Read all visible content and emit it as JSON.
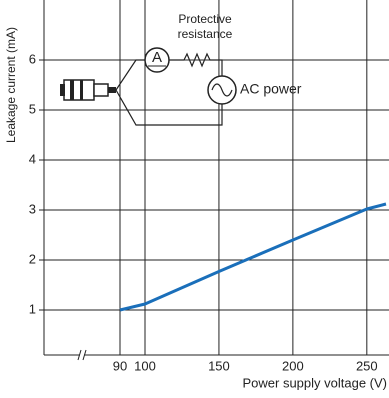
{
  "chart_data": {
    "type": "line",
    "x_label": "Power supply voltage (V)",
    "y_label": "Leakage current (mA)",
    "x": [
      90,
      100,
      150,
      200,
      250,
      263
    ],
    "series": [
      {
        "color": "#1a6fba",
        "values": [
          1.0,
          1.12,
          1.77,
          2.4,
          3.02,
          3.12
        ]
      }
    ],
    "xlim": [
      60,
      265
    ],
    "xticks": [
      90,
      100,
      150,
      200,
      250
    ],
    "ylim": [
      0.1,
      7.2
    ],
    "yticks": [
      1,
      2,
      3,
      4,
      5,
      6
    ],
    "grid": true,
    "x_axis_break": true,
    "inset": {
      "resistor_label_1": "Protective",
      "resistor_label_2": "resistance",
      "meter_label": "A",
      "source_label": "AC power"
    }
  }
}
